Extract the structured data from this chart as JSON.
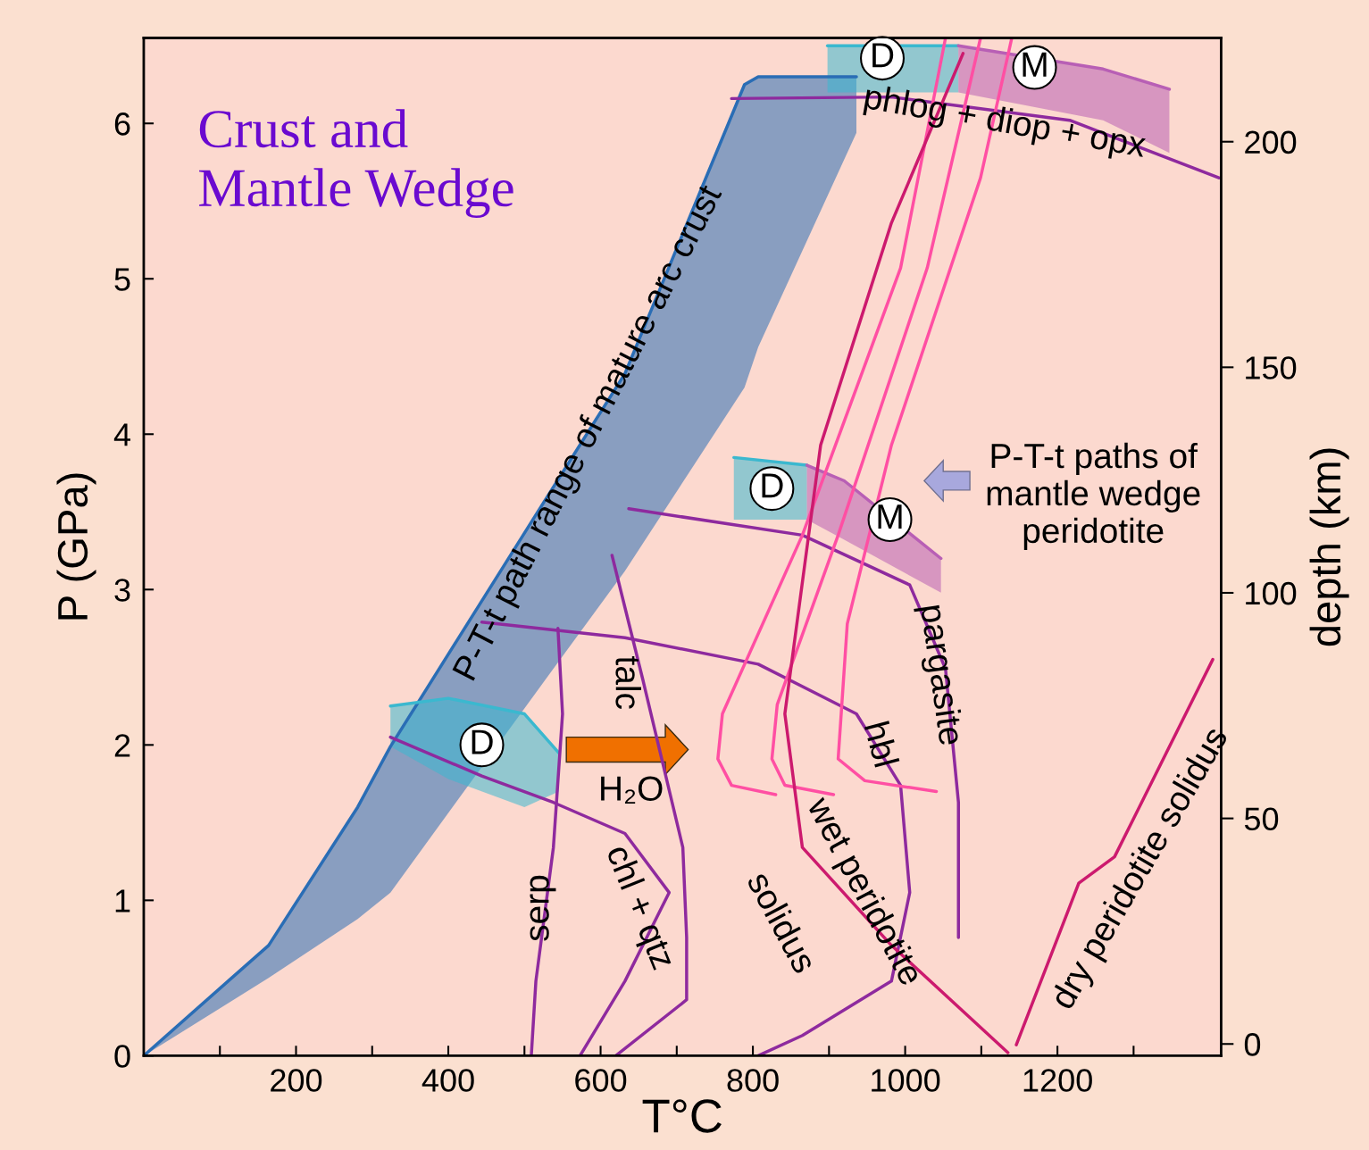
{
  "chart_data": {
    "type": "line",
    "title": "Crust and\nMantle Wedge",
    "xlabel": "T°C",
    "ylabel": "P (GPa)",
    "y2label": "depth (km)",
    "xlim": [
      0,
      1415
    ],
    "ylim": [
      0,
      6.55
    ],
    "y2lim": [
      -2.6,
      223
    ],
    "xticks": [
      {
        "value": 100,
        "label": null
      },
      200,
      {
        "value": 300,
        "label": null
      },
      400,
      {
        "value": 500,
        "label": null
      },
      600,
      {
        "value": 700,
        "label": null
      },
      800,
      {
        "value": 900,
        "label": null
      },
      1000,
      {
        "value": 1100,
        "label": null
      },
      1200,
      {
        "value": 1300,
        "label": null
      }
    ],
    "yticks": [
      0,
      1,
      2,
      3,
      4,
      5,
      6
    ],
    "y2ticks": [
      0,
      50,
      100,
      150,
      200
    ],
    "grid": false,
    "series": [
      {
        "color": "#2a6db5",
        "x": [
          0,
          164,
          281,
          324,
          520,
          632,
          789,
          807,
          936
        ],
        "values": [
          0,
          0.71,
          1.6,
          1.99,
          3.52,
          4.39,
          6.25,
          6.3,
          6.3
        ],
        "lower": [
          0,
          0.5,
          0.88,
          1.05,
          2.37,
          3.12,
          4.3,
          4.56,
          5.94
        ],
        "upper": [
          0,
          0.71,
          1.6,
          1.99,
          3.52,
          4.39,
          6.25,
          6.3,
          6.3
        ]
      },
      {
        "color": "#3bb8cf",
        "x": [
          324,
          400,
          500,
          545
        ],
        "values": [
          2.25,
          2.3,
          2.2,
          1.95
        ],
        "lower": [
          1.99,
          1.78,
          1.6,
          1.7
        ],
        "upper": [
          2.25,
          2.3,
          2.2,
          1.95
        ]
      },
      {
        "color": "#3bb8cf",
        "x": [
          775,
          871
        ],
        "values": [
          3.85,
          3.8
        ],
        "lower": [
          3.45,
          3.45
        ],
        "upper": [
          3.85,
          3.8
        ]
      },
      {
        "color": "#b85fb5",
        "x": [
          871,
          920,
          1047
        ],
        "values": [
          3.8,
          3.7,
          3.2
        ],
        "lower": [
          3.45,
          3.32,
          2.98
        ],
        "upper": [
          3.8,
          3.7,
          3.2
        ]
      },
      {
        "color": "#3bb8cf",
        "x": [
          898,
          1070
        ],
        "values": [
          6.5,
          6.5
        ],
        "lower": [
          6.2,
          6.2
        ],
        "upper": [
          6.5,
          6.5
        ]
      },
      {
        "color": "#b85fb5",
        "x": [
          1070,
          1260,
          1347
        ],
        "values": [
          6.5,
          6.35,
          6.22
        ],
        "lower": [
          6.2,
          6.02,
          5.81
        ],
        "upper": [
          6.5,
          6.35,
          6.22
        ]
      },
      {
        "color": "#8e2a9e",
        "x": [
          772,
          982,
          1216,
          1412
        ],
        "values": [
          6.16,
          6.17,
          6.02,
          5.65
        ]
      },
      {
        "color": "#8e2a9e",
        "x": [
          324,
          444,
          538,
          632,
          690,
          632,
          573
        ],
        "values": [
          2.05,
          1.8,
          1.63,
          1.43,
          1.05,
          0.48,
          0
        ]
      },
      {
        "color": "#8e2a9e",
        "x": [
          544,
          550,
          538,
          515,
          509
        ],
        "values": [
          2.75,
          2.2,
          1.34,
          0.48,
          0
        ]
      },
      {
        "color": "#8e2a9e",
        "x": [
          615,
          655,
          708,
          713,
          713,
          620
        ],
        "values": [
          3.22,
          2.43,
          1.34,
          0.76,
          0.36,
          0
        ]
      },
      {
        "color": "#8e2a9e",
        "x": [
          444,
          632,
          807,
          936,
          994,
          1006,
          982,
          865,
          807
        ],
        "values": [
          2.79,
          2.69,
          2.52,
          2.2,
          1.74,
          1.05,
          0.48,
          0.13,
          0
        ]
      },
      {
        "color": "#8e2a9e",
        "x": [
          637,
          865,
          1006,
          1053,
          1070,
          1070
        ],
        "values": [
          3.52,
          3.35,
          3.03,
          2.49,
          1.63,
          0.76
        ]
      },
      {
        "color": "#ff4fa3",
        "x": [
          1053,
          994,
          865,
          760,
          754,
          772,
          830
        ],
        "values": [
          6.55,
          5.07,
          3.35,
          2.2,
          1.91,
          1.74,
          1.68
        ]
      },
      {
        "color": "#ff4fa3",
        "x": [
          1099,
          1029,
          912,
          832,
          825,
          842,
          906
        ],
        "values": [
          6.55,
          5.07,
          3.35,
          2.26,
          1.91,
          1.74,
          1.68
        ]
      },
      {
        "color": "#ff4fa3",
        "x": [
          1140,
          1099,
          982,
          924,
          912,
          947,
          1041
        ],
        "values": [
          6.55,
          5.65,
          3.93,
          2.78,
          1.91,
          1.77,
          1.7
        ]
      },
      {
        "color": "#cc1a6e",
        "x": [
          1076,
          982,
          889,
          842,
          865,
          982,
          1135
        ],
        "values": [
          6.45,
          5.36,
          3.93,
          2.2,
          1.34,
          0.71,
          0.02
        ]
      },
      {
        "color": "#cc1a6e",
        "x": [
          1146,
          1228,
          1275,
          1404
        ],
        "values": [
          0.07,
          1.11,
          1.28,
          2.55
        ]
      }
    ],
    "annotations": [
      {
        "text": "P-T-t path range of mature arc crust",
        "x": 585,
        "y": 4.0
      },
      "phlog + diop + opx",
      "P-T-t paths of\nmantle wedge\nperidotite",
      "talc",
      "serp",
      "chl + qtz",
      "H₂O",
      "hbl",
      "pargasite",
      "wet peridotite",
      "solidus",
      "dry peridotite solidus",
      "D",
      "D",
      "M",
      "D",
      "M"
    ]
  }
}
